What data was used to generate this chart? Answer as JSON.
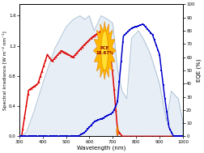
{
  "xlabel": "Wavelength (nm)",
  "ylabel_left": "Spectral Irradiance [W m⁻² nm⁻¹]",
  "ylabel_right": "EQE (%)",
  "xlim": [
    300,
    1000
  ],
  "ylim_left": [
    0,
    1.75
  ],
  "ylim_right": [
    0,
    100
  ],
  "yticks_left": [
    0.0,
    0.4,
    0.8,
    1.2,
    1.6
  ],
  "yticks_right": [
    0,
    10,
    20,
    30,
    40,
    50,
    60,
    70,
    80,
    90,
    100
  ],
  "xticks": [
    300,
    400,
    500,
    600,
    700,
    800,
    900,
    1000
  ],
  "pce_text": "PCE\n18.67%",
  "sun_color_outer": "#FFB800",
  "sun_color_inner": "#FFE030",
  "sun_edge": "#E08000",
  "pce_text_color": "#8B0000",
  "solar_fill_color": "#b0c8e0",
  "solar_line_color": "#a0b8d0",
  "red_color": "#dd0000",
  "blue_color": "#0000cc"
}
